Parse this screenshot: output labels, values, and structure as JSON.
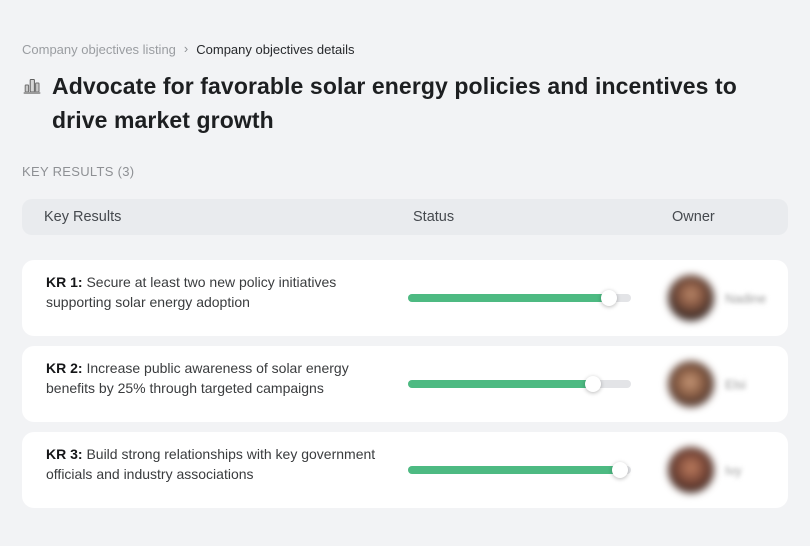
{
  "breadcrumb": {
    "items": [
      {
        "label": "Company objectives listing"
      },
      {
        "label": "Company objectives details"
      }
    ],
    "separator": "›"
  },
  "objective": {
    "icon": "company-building-icon",
    "title": "Advocate for favorable solar energy policies and incentives to drive market growth"
  },
  "section": {
    "label": "KEY RESULTS (3)"
  },
  "table": {
    "headers": {
      "key_results": "Key Results",
      "status": "Status",
      "owner": "Owner"
    },
    "rows": [
      {
        "kr_label": "KR 1:",
        "description": " Secure at least two new policy initiatives supporting solar energy adoption",
        "progress_percent": 90,
        "owner": "Nadine",
        "owner_blurred": true
      },
      {
        "kr_label": "KR 2:",
        "description": " Increase public awareness of solar energy benefits by 25% through targeted campaigns",
        "progress_percent": 83,
        "owner": "Elsi",
        "owner_blurred": true
      },
      {
        "kr_label": "KR 3:",
        "description": " Build strong relationships with key government officials and industry associations",
        "progress_percent": 95,
        "owner": "Ivy",
        "owner_blurred": true
      }
    ]
  },
  "colors": {
    "page_bg": "#f2f3f5",
    "card_bg": "#ffffff",
    "header_bg": "#e9ebee",
    "progress_fill": "#4dba82",
    "progress_track": "#e3e4e7",
    "muted_text": "#9a9da1",
    "dark_text": "#1d1f21"
  }
}
